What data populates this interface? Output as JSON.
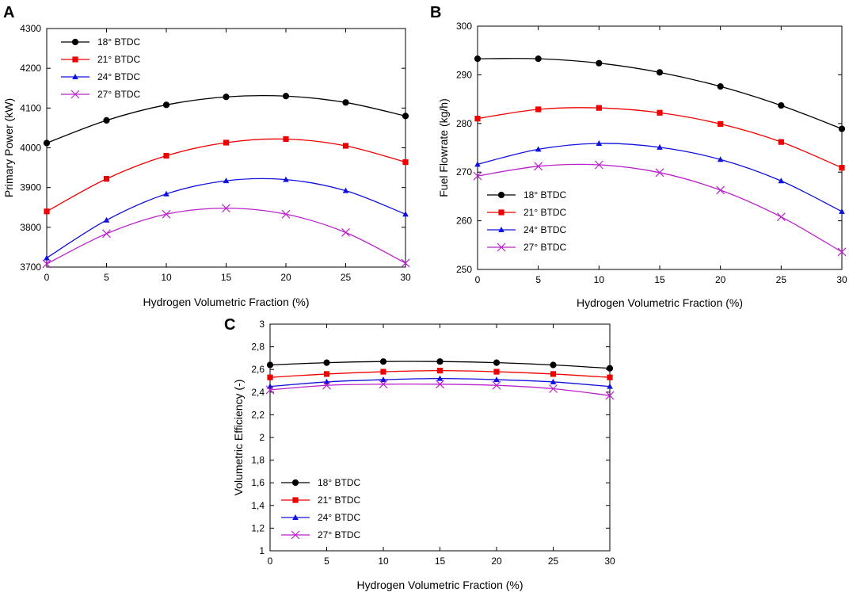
{
  "colors": {
    "series": [
      "#000000",
      "#ee0000",
      "#1010dd",
      "#bb22cc"
    ]
  },
  "chart_data": [
    {
      "type": "line",
      "panel": "A",
      "title": "",
      "xlabel": "Hydrogen Volumetric Fraction (%)",
      "ylabel": "Primary Power (kW)",
      "xlim": [
        0,
        30
      ],
      "ylim": [
        3700,
        4300
      ],
      "xticks": [
        0,
        5,
        10,
        15,
        20,
        25,
        30
      ],
      "yticks": [
        3700,
        3800,
        3900,
        4000,
        4100,
        4200,
        4300
      ],
      "ytick_labels": [
        "3700",
        "3800",
        "3900",
        "4000",
        "4100",
        "4200",
        "4300"
      ],
      "legend_position": "top-left",
      "x": [
        0,
        5,
        10,
        15,
        20,
        25,
        30
      ],
      "series": [
        {
          "name": "18° BTDC",
          "marker": "circle",
          "values": [
            4012,
            4069,
            4108,
            4128,
            4130,
            4114,
            4080
          ]
        },
        {
          "name": "21° BTDC",
          "marker": "square",
          "values": [
            3840,
            3922,
            3980,
            4013,
            4022,
            4005,
            3964
          ]
        },
        {
          "name": "24° BTDC",
          "marker": "triangle",
          "values": [
            3723,
            3818,
            3884,
            3917,
            3920,
            3892,
            3833
          ]
        },
        {
          "name": "27° BTDC",
          "marker": "x",
          "values": [
            3708,
            3784,
            3833,
            3848,
            3833,
            3787,
            3710
          ]
        }
      ]
    },
    {
      "type": "line",
      "panel": "B",
      "title": "",
      "xlabel": "Hydrogen Volumetric Fraction (%)",
      "ylabel": "Fuel Flowrate (kg/h)",
      "xlim": [
        0,
        30
      ],
      "ylim": [
        250,
        300
      ],
      "xticks": [
        0,
        5,
        10,
        15,
        20,
        25,
        30
      ],
      "yticks": [
        250,
        260,
        270,
        280,
        290,
        300
      ],
      "ytick_labels": [
        "250",
        "260",
        "270",
        "280",
        "290",
        "300"
      ],
      "legend_position": "lower-left",
      "x": [
        0,
        5,
        10,
        15,
        20,
        25,
        30
      ],
      "series": [
        {
          "name": "18° BTDC",
          "marker": "circle",
          "values": [
            293.3,
            293.3,
            292.4,
            290.5,
            287.6,
            283.7,
            278.9
          ]
        },
        {
          "name": "21° BTDC",
          "marker": "square",
          "values": [
            281.0,
            282.9,
            283.2,
            282.2,
            279.9,
            276.2,
            270.9
          ]
        },
        {
          "name": "24° BTDC",
          "marker": "triangle",
          "values": [
            271.6,
            274.7,
            275.9,
            275.1,
            272.6,
            268.2,
            261.9
          ]
        },
        {
          "name": "27° BTDC",
          "marker": "x",
          "values": [
            269.2,
            271.2,
            271.5,
            269.9,
            266.3,
            260.8,
            253.6
          ]
        }
      ]
    },
    {
      "type": "line",
      "panel": "C",
      "title": "",
      "xlabel": "Hydrogen Volumetric Fraction (%)",
      "ylabel": "Volumetric Efficiency (-)",
      "xlim": [
        0,
        30
      ],
      "ylim": [
        1,
        3
      ],
      "xticks": [
        0,
        5,
        10,
        15,
        20,
        25,
        30
      ],
      "yticks": [
        1,
        1.2,
        1.4,
        1.6,
        1.8,
        2,
        2.2,
        2.4,
        2.6,
        2.8,
        3
      ],
      "ytick_labels": [
        "1",
        "1,2",
        "1,4",
        "1,6",
        "1,8",
        "2",
        "2,2",
        "2,4",
        "2,6",
        "2,8",
        "3"
      ],
      "legend_position": "lower-left",
      "x": [
        0,
        5,
        10,
        15,
        20,
        25,
        30
      ],
      "series": [
        {
          "name": "18° BTDC",
          "marker": "circle",
          "values": [
            2.64,
            2.66,
            2.67,
            2.67,
            2.66,
            2.64,
            2.61
          ]
        },
        {
          "name": "21° BTDC",
          "marker": "square",
          "values": [
            2.53,
            2.56,
            2.58,
            2.59,
            2.58,
            2.56,
            2.53
          ]
        },
        {
          "name": "24° BTDC",
          "marker": "triangle",
          "values": [
            2.45,
            2.49,
            2.51,
            2.52,
            2.51,
            2.49,
            2.45
          ]
        },
        {
          "name": "27° BTDC",
          "marker": "x",
          "values": [
            2.42,
            2.46,
            2.47,
            2.47,
            2.46,
            2.43,
            2.37
          ]
        }
      ]
    }
  ]
}
